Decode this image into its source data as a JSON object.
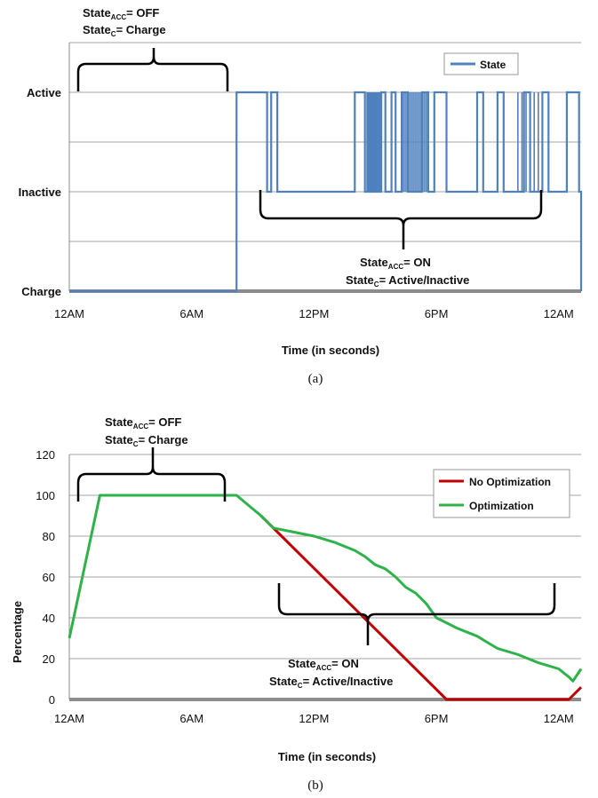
{
  "chart_data": [
    {
      "type": "line",
      "caption": "(a)",
      "xlabel": "Time (in seconds)",
      "ylabel": "",
      "x_ticks": [
        "12AM",
        "6AM",
        "12PM",
        "6PM",
        "12AM"
      ],
      "y_ticks": [
        "Charge",
        "Inactive",
        "Active"
      ],
      "grid": true,
      "legend_position": "top-right",
      "series": [
        {
          "name": "State",
          "color": "#4f81bd",
          "x": [
            0,
            8.2,
            8.2,
            9.7,
            9.7,
            9.9,
            9.9,
            10.2,
            10.2,
            10.5,
            10.5,
            14.0,
            14.0,
            14.5,
            14.5,
            15.3,
            15.3,
            15.5,
            15.5,
            15.8,
            15.8,
            16.0,
            16.0,
            16.3,
            16.3,
            16.6,
            16.6,
            17.3,
            17.3,
            17.6,
            17.6,
            17.9,
            17.9,
            18.5,
            18.5,
            20.0,
            20.0,
            20.3,
            20.3,
            21.0,
            21.0,
            21.3,
            21.3,
            22.3,
            22.3,
            22.6,
            22.6,
            23.2,
            23.2,
            23.5,
            23.5,
            24.4,
            24.4,
            25.0,
            25.0,
            25.1,
            25.1,
            25.1
          ],
          "y": [
            0,
            0,
            2,
            2,
            1,
            1,
            2,
            2,
            1,
            1,
            1,
            1,
            2,
            2,
            1,
            1,
            2,
            2,
            1,
            1,
            2,
            2,
            1,
            1,
            2,
            2,
            1,
            1,
            2,
            2,
            1,
            1,
            2,
            2,
            1,
            1,
            2,
            2,
            1,
            1,
            2,
            2,
            1,
            1,
            2,
            2,
            1,
            1,
            2,
            2,
            1,
            1,
            2,
            2,
            1,
            1,
            0,
            0
          ]
        }
      ],
      "annotations": [
        {
          "state_acc": "OFF",
          "state_c": "Charge"
        },
        {
          "state_acc": "ON",
          "state_c": "Active/Inactive"
        }
      ]
    },
    {
      "type": "line",
      "caption": "(b)",
      "xlabel": "Time (in seconds)",
      "ylabel": "Percentage",
      "x_ticks": [
        "12AM",
        "6AM",
        "12PM",
        "6PM",
        "12AM"
      ],
      "y_ticks": [
        "0",
        "20",
        "40",
        "60",
        "80",
        "100",
        "120"
      ],
      "ylim": [
        0,
        120
      ],
      "grid": true,
      "legend_position": "top-right",
      "series": [
        {
          "name": "No Optimization",
          "color": "#c00000",
          "x": [
            9.4,
            18.5,
            24.5,
            25.1
          ],
          "y": [
            90,
            0,
            0,
            6
          ]
        },
        {
          "name": "Optimization",
          "color": "#2db34a",
          "x": [
            0,
            1.5,
            8.2,
            9.4,
            10.0,
            11.0,
            12.0,
            13.0,
            14.0,
            14.5,
            15.0,
            15.5,
            16.0,
            16.5,
            17.0,
            17.5,
            18.0,
            19.0,
            20.0,
            20.5,
            21.0,
            22.0,
            23.0,
            24.0,
            24.5,
            24.7,
            25.1
          ],
          "y": [
            30,
            100,
            100,
            90,
            84,
            82,
            80,
            77,
            73,
            70,
            66,
            64,
            60,
            55,
            52,
            47,
            40,
            35,
            31,
            28,
            25,
            22,
            18,
            15,
            11,
            9,
            15
          ]
        }
      ],
      "annotations": [
        {
          "state_acc": "OFF",
          "state_c": "Charge"
        },
        {
          "state_acc": "ON",
          "state_c": "Active/Inactive"
        }
      ]
    }
  ],
  "labels": {
    "state_prefix": "State",
    "acc_sub": "ACC",
    "c_sub": "C",
    "eq_off": "= OFF",
    "eq_on": "= ON",
    "eq_charge": "= Charge",
    "eq_ai": "= Active/Inactive"
  }
}
